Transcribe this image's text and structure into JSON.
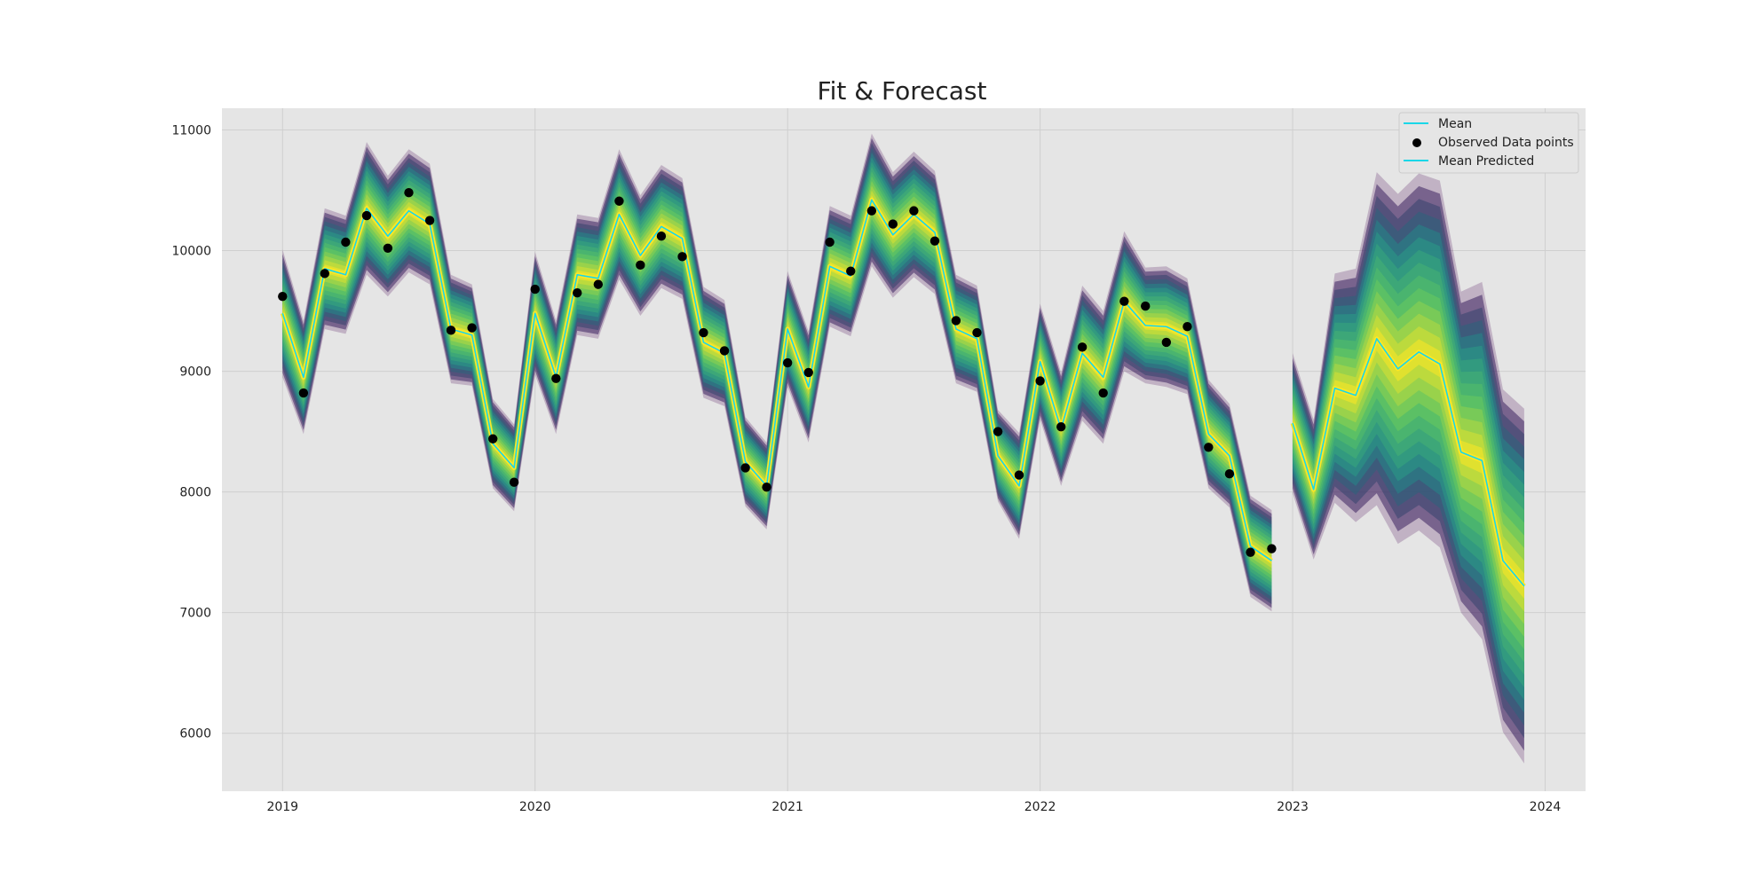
{
  "chart_data": {
    "type": "line",
    "title": "Fit & Forecast",
    "xlabel": "",
    "ylabel": "",
    "grid": true,
    "legend_position": "top-right",
    "xlim": [
      2018.76,
      2024.16
    ],
    "ylim": [
      5520,
      11180
    ],
    "x_ticks": [
      2019,
      2020,
      2021,
      2022,
      2023,
      2024
    ],
    "x_tick_labels": [
      "2019",
      "2020",
      "2021",
      "2022",
      "2023",
      "2024"
    ],
    "y_ticks": [
      6000,
      7000,
      8000,
      9000,
      10000,
      11000
    ],
    "y_tick_labels": [
      "6000",
      "7000",
      "8000",
      "9000",
      "10000",
      "11000"
    ],
    "fit_x": [
      2019.0,
      2019.083,
      2019.167,
      2019.25,
      2019.333,
      2019.417,
      2019.5,
      2019.583,
      2019.667,
      2019.75,
      2019.833,
      2019.917,
      2020.0,
      2020.083,
      2020.167,
      2020.25,
      2020.333,
      2020.417,
      2020.5,
      2020.583,
      2020.667,
      2020.75,
      2020.833,
      2020.917,
      2021.0,
      2021.083,
      2021.167,
      2021.25,
      2021.333,
      2021.417,
      2021.5,
      2021.583,
      2021.667,
      2021.75,
      2021.833,
      2021.917,
      2022.0,
      2022.083,
      2022.167,
      2022.25,
      2022.333,
      2022.417,
      2022.5,
      2022.583,
      2022.667,
      2022.75,
      2022.833,
      2022.917
    ],
    "fit_mean": [
      9480,
      8950,
      9850,
      9800,
      10350,
      10120,
      10330,
      10220,
      9350,
      9300,
      8400,
      8200,
      9480,
      8950,
      9800,
      9770,
      10300,
      9960,
      10200,
      10100,
      9240,
      9150,
      8250,
      8050,
      9350,
      8870,
      9870,
      9790,
      10420,
      10130,
      10300,
      10150,
      9350,
      9270,
      8300,
      8050,
      9080,
      8520,
      9150,
      8950,
      9580,
      9380,
      9370,
      9290,
      8480,
      8300,
      7550,
      7430
    ],
    "fit_halfwidth": [
      530,
      470,
      500,
      490,
      550,
      500,
      510,
      500,
      450,
      420,
      370,
      360,
      510,
      470,
      500,
      500,
      540,
      500,
      510,
      500,
      460,
      440,
      370,
      360,
      480,
      460,
      500,
      500,
      550,
      520,
      520,
      510,
      450,
      440,
      380,
      440,
      480,
      470,
      560,
      550,
      580,
      480,
      500,
      480,
      450,
      430,
      420,
      420
    ],
    "forecast_x": [
      2023.0,
      2023.083,
      2023.167,
      2023.25,
      2023.333,
      2023.417,
      2023.5,
      2023.583,
      2023.667,
      2023.75,
      2023.833,
      2023.917
    ],
    "forecast_mean": [
      8570,
      8020,
      8860,
      8800,
      9270,
      9020,
      9160,
      9060,
      8330,
      8260,
      7430,
      7220
    ],
    "forecast_halfwidth": [
      580,
      580,
      950,
      1050,
      1380,
      1450,
      1480,
      1520,
      1330,
      1480,
      1420,
      1470
    ],
    "observed": {
      "name": "Observed Data points",
      "x": [
        2019.0,
        2019.083,
        2019.167,
        2019.25,
        2019.333,
        2019.417,
        2019.5,
        2019.583,
        2019.667,
        2019.75,
        2019.833,
        2019.917,
        2020.0,
        2020.083,
        2020.167,
        2020.25,
        2020.333,
        2020.417,
        2020.5,
        2020.583,
        2020.667,
        2020.75,
        2020.833,
        2020.917,
        2021.0,
        2021.083,
        2021.167,
        2021.25,
        2021.333,
        2021.417,
        2021.5,
        2021.583,
        2021.667,
        2021.75,
        2021.833,
        2021.917,
        2022.0,
        2022.083,
        2022.167,
        2022.25,
        2022.333,
        2022.417,
        2022.5,
        2022.583,
        2022.667,
        2022.75,
        2022.833,
        2022.917
      ],
      "y": [
        9620,
        8820,
        9810,
        10070,
        10290,
        10020,
        10480,
        10250,
        9340,
        9360,
        8440,
        8080,
        9680,
        8940,
        9650,
        9720,
        10410,
        9880,
        10120,
        9950,
        9320,
        9170,
        8200,
        8040,
        9070,
        8990,
        10070,
        9830,
        10330,
        10220,
        10330,
        10080,
        9420,
        9320,
        8500,
        8140,
        8920,
        8540,
        9200,
        8820,
        9580,
        9540,
        9240,
        9370,
        8370,
        8150,
        7500,
        7530
      ]
    },
    "legend": [
      "Mean",
      "Observed Data points",
      "Mean Predicted"
    ],
    "colors": {
      "plot_background": "#e5e5e5",
      "grid": "#cfcfcf",
      "mean_line": "#1ad7e8",
      "observed": "#000000",
      "band_outer": "#440154",
      "band_mid": "#21918c",
      "band_inner": "#5ec962",
      "band_center": "#fde725"
    }
  }
}
